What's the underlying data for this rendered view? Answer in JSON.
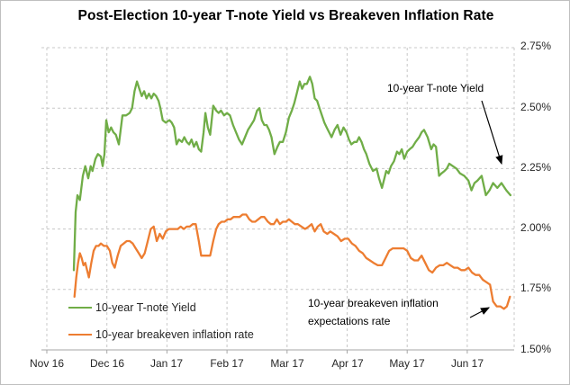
{
  "title": "Post-Election 10-year T-note Yield vs Breakeven Inflation Rate",
  "colors": {
    "tnote_green": "#70AD47",
    "breakeven_orange": "#ED7D31",
    "gridline": "#C8C8C8",
    "axis_line": "#A6A6A6",
    "text": "#262626",
    "annotation_arrow": "#000000"
  },
  "legend": {
    "position": "bottom-left-inside",
    "items": [
      {
        "label": "10-year T-note Yield",
        "color": "#70AD47"
      },
      {
        "label": "10-year breakeven inflation rate",
        "color": "#ED7D31"
      }
    ]
  },
  "annotations": {
    "tnote_label": "10-year T-note Yield",
    "breakeven_line1": "10-year breakeven inflation",
    "breakeven_line2": "expectations rate"
  },
  "chart_data": {
    "type": "line",
    "title": "Post-Election 10-year T-note Yield vs Breakeven Inflation Rate",
    "x_axis": {
      "labels": [
        "Nov 16",
        "Dec 16",
        "Jan 17",
        "Feb 17",
        "Mar 17",
        "Apr 17",
        "May 17",
        "Jun 17"
      ],
      "x_unit": "months after Nov 2016 tick (0 = Nov 16 tick, 7 = Jun 17 tick)",
      "range": [
        0,
        7.78
      ]
    },
    "y_axis": {
      "tick_labels": [
        "2.75%",
        "2.50%",
        "2.25%",
        "2.00%",
        "1.75%",
        "1.50%"
      ],
      "ticks": [
        2.75,
        2.5,
        2.25,
        2.0,
        1.75,
        1.5
      ],
      "min": 1.5,
      "max": 2.75,
      "unit": "%"
    },
    "grid": "dashed",
    "series": [
      {
        "name": "10-year T-note Yield",
        "color": "#70AD47",
        "points": [
          [
            0.45,
            1.83
          ],
          [
            0.48,
            2.07
          ],
          [
            0.51,
            2.14
          ],
          [
            0.55,
            2.12
          ],
          [
            0.6,
            2.22
          ],
          [
            0.64,
            2.26
          ],
          [
            0.69,
            2.21
          ],
          [
            0.73,
            2.26
          ],
          [
            0.76,
            2.24
          ],
          [
            0.81,
            2.29
          ],
          [
            0.85,
            2.31
          ],
          [
            0.9,
            2.3
          ],
          [
            0.93,
            2.26
          ],
          [
            0.96,
            2.31
          ],
          [
            0.99,
            2.45
          ],
          [
            1.03,
            2.4
          ],
          [
            1.07,
            2.42
          ],
          [
            1.11,
            2.4
          ],
          [
            1.15,
            2.39
          ],
          [
            1.2,
            2.35
          ],
          [
            1.26,
            2.47
          ],
          [
            1.32,
            2.47
          ],
          [
            1.38,
            2.48
          ],
          [
            1.42,
            2.5
          ],
          [
            1.46,
            2.57
          ],
          [
            1.5,
            2.61
          ],
          [
            1.54,
            2.58
          ],
          [
            1.58,
            2.55
          ],
          [
            1.62,
            2.57
          ],
          [
            1.66,
            2.54
          ],
          [
            1.7,
            2.56
          ],
          [
            1.74,
            2.54
          ],
          [
            1.78,
            2.56
          ],
          [
            1.82,
            2.55
          ],
          [
            1.86,
            2.53
          ],
          [
            1.89,
            2.5
          ],
          [
            1.93,
            2.45
          ],
          [
            1.98,
            2.44
          ],
          [
            2.04,
            2.45
          ],
          [
            2.08,
            2.44
          ],
          [
            2.12,
            2.42
          ],
          [
            2.16,
            2.35
          ],
          [
            2.2,
            2.37
          ],
          [
            2.25,
            2.36
          ],
          [
            2.29,
            2.38
          ],
          [
            2.33,
            2.36
          ],
          [
            2.37,
            2.35
          ],
          [
            2.41,
            2.37
          ],
          [
            2.45,
            2.34
          ],
          [
            2.49,
            2.36
          ],
          [
            2.53,
            2.33
          ],
          [
            2.57,
            2.32
          ],
          [
            2.61,
            2.4
          ],
          [
            2.64,
            2.48
          ],
          [
            2.68,
            2.42
          ],
          [
            2.72,
            2.39
          ],
          [
            2.77,
            2.51
          ],
          [
            2.82,
            2.49
          ],
          [
            2.86,
            2.48
          ],
          [
            2.9,
            2.49
          ],
          [
            2.95,
            2.47
          ],
          [
            3.0,
            2.48
          ],
          [
            3.05,
            2.47
          ],
          [
            3.1,
            2.43
          ],
          [
            3.15,
            2.4
          ],
          [
            3.2,
            2.37
          ],
          [
            3.25,
            2.35
          ],
          [
            3.3,
            2.38
          ],
          [
            3.35,
            2.41
          ],
          [
            3.4,
            2.43
          ],
          [
            3.45,
            2.45
          ],
          [
            3.5,
            2.49
          ],
          [
            3.54,
            2.5
          ],
          [
            3.58,
            2.45
          ],
          [
            3.62,
            2.43
          ],
          [
            3.66,
            2.43
          ],
          [
            3.7,
            2.41
          ],
          [
            3.74,
            2.38
          ],
          [
            3.79,
            2.31
          ],
          [
            3.84,
            2.34
          ],
          [
            3.88,
            2.36
          ],
          [
            3.93,
            2.36
          ],
          [
            3.98,
            2.4
          ],
          [
            4.03,
            2.46
          ],
          [
            4.08,
            2.49
          ],
          [
            4.12,
            2.52
          ],
          [
            4.16,
            2.56
          ],
          [
            4.21,
            2.61
          ],
          [
            4.25,
            2.58
          ],
          [
            4.29,
            2.6
          ],
          [
            4.33,
            2.6
          ],
          [
            4.38,
            2.63
          ],
          [
            4.42,
            2.6
          ],
          [
            4.46,
            2.54
          ],
          [
            4.5,
            2.53
          ],
          [
            4.54,
            2.5
          ],
          [
            4.58,
            2.47
          ],
          [
            4.62,
            2.44
          ],
          [
            4.66,
            2.42
          ],
          [
            4.7,
            2.4
          ],
          [
            4.74,
            2.38
          ],
          [
            4.79,
            2.41
          ],
          [
            4.84,
            2.43
          ],
          [
            4.89,
            2.39
          ],
          [
            4.94,
            2.42
          ],
          [
            4.99,
            2.4
          ],
          [
            5.03,
            2.37
          ],
          [
            5.07,
            2.35
          ],
          [
            5.12,
            2.36
          ],
          [
            5.16,
            2.36
          ],
          [
            5.2,
            2.38
          ],
          [
            5.24,
            2.36
          ],
          [
            5.28,
            2.33
          ],
          [
            5.32,
            2.31
          ],
          [
            5.37,
            2.27
          ],
          [
            5.43,
            2.24
          ],
          [
            5.49,
            2.25
          ],
          [
            5.53,
            2.21
          ],
          [
            5.58,
            2.17
          ],
          [
            5.62,
            2.21
          ],
          [
            5.65,
            2.24
          ],
          [
            5.69,
            2.23
          ],
          [
            5.73,
            2.26
          ],
          [
            5.78,
            2.28
          ],
          [
            5.83,
            2.32
          ],
          [
            5.87,
            2.31
          ],
          [
            5.91,
            2.33
          ],
          [
            5.95,
            2.29
          ],
          [
            6.0,
            2.32
          ],
          [
            6.04,
            2.33
          ],
          [
            6.09,
            2.34
          ],
          [
            6.14,
            2.36
          ],
          [
            6.2,
            2.38
          ],
          [
            6.24,
            2.4
          ],
          [
            6.28,
            2.41
          ],
          [
            6.34,
            2.38
          ],
          [
            6.4,
            2.33
          ],
          [
            6.44,
            2.35
          ],
          [
            6.48,
            2.34
          ],
          [
            6.53,
            2.22
          ],
          [
            6.57,
            2.23
          ],
          [
            6.62,
            2.24
          ],
          [
            6.66,
            2.25
          ],
          [
            6.7,
            2.27
          ],
          [
            6.76,
            2.26
          ],
          [
            6.82,
            2.25
          ],
          [
            6.88,
            2.23
          ],
          [
            6.95,
            2.22
          ],
          [
            7.02,
            2.2
          ],
          [
            7.07,
            2.16
          ],
          [
            7.12,
            2.19
          ],
          [
            7.17,
            2.2
          ],
          [
            7.24,
            2.22
          ],
          [
            7.31,
            2.14
          ],
          [
            7.37,
            2.16
          ],
          [
            7.43,
            2.19
          ],
          [
            7.5,
            2.17
          ],
          [
            7.57,
            2.19
          ],
          [
            7.65,
            2.16
          ],
          [
            7.72,
            2.14
          ]
        ]
      },
      {
        "name": "10-year breakeven inflation rate",
        "color": "#ED7D31",
        "points": [
          [
            0.46,
            1.72
          ],
          [
            0.49,
            1.8
          ],
          [
            0.52,
            1.86
          ],
          [
            0.55,
            1.9
          ],
          [
            0.58,
            1.88
          ],
          [
            0.61,
            1.85
          ],
          [
            0.64,
            1.86
          ],
          [
            0.67,
            1.83
          ],
          [
            0.7,
            1.8
          ],
          [
            0.74,
            1.86
          ],
          [
            0.78,
            1.91
          ],
          [
            0.82,
            1.93
          ],
          [
            0.86,
            1.93
          ],
          [
            0.9,
            1.94
          ],
          [
            0.95,
            1.93
          ],
          [
            1.0,
            1.93
          ],
          [
            1.05,
            1.91
          ],
          [
            1.09,
            1.86
          ],
          [
            1.13,
            1.84
          ],
          [
            1.18,
            1.89
          ],
          [
            1.23,
            1.93
          ],
          [
            1.28,
            1.94
          ],
          [
            1.33,
            1.95
          ],
          [
            1.38,
            1.95
          ],
          [
            1.43,
            1.94
          ],
          [
            1.48,
            1.92
          ],
          [
            1.53,
            1.9
          ],
          [
            1.58,
            1.88
          ],
          [
            1.63,
            1.9
          ],
          [
            1.68,
            1.95
          ],
          [
            1.73,
            2.0
          ],
          [
            1.78,
            2.01
          ],
          [
            1.83,
            1.95
          ],
          [
            1.88,
            1.98
          ],
          [
            1.93,
            1.96
          ],
          [
            1.98,
            1.99
          ],
          [
            2.03,
            2.0
          ],
          [
            2.08,
            2.0
          ],
          [
            2.13,
            2.0
          ],
          [
            2.18,
            2.0
          ],
          [
            2.23,
            2.01
          ],
          [
            2.28,
            2.0
          ],
          [
            2.33,
            2.01
          ],
          [
            2.38,
            2.01
          ],
          [
            2.43,
            2.02
          ],
          [
            2.48,
            2.02
          ],
          [
            2.53,
            1.95
          ],
          [
            2.57,
            1.89
          ],
          [
            2.62,
            1.89
          ],
          [
            2.67,
            1.89
          ],
          [
            2.72,
            1.89
          ],
          [
            2.77,
            1.95
          ],
          [
            2.82,
            2.0
          ],
          [
            2.86,
            2.02
          ],
          [
            2.91,
            2.03
          ],
          [
            2.96,
            2.03
          ],
          [
            3.01,
            2.04
          ],
          [
            3.06,
            2.04
          ],
          [
            3.11,
            2.05
          ],
          [
            3.16,
            2.05
          ],
          [
            3.21,
            2.05
          ],
          [
            3.26,
            2.06
          ],
          [
            3.32,
            2.06
          ],
          [
            3.37,
            2.04
          ],
          [
            3.42,
            2.03
          ],
          [
            3.47,
            2.03
          ],
          [
            3.52,
            2.04
          ],
          [
            3.57,
            2.05
          ],
          [
            3.62,
            2.05
          ],
          [
            3.68,
            2.03
          ],
          [
            3.73,
            2.02
          ],
          [
            3.78,
            2.02
          ],
          [
            3.83,
            2.04
          ],
          [
            3.88,
            2.02
          ],
          [
            3.93,
            2.03
          ],
          [
            3.98,
            2.03
          ],
          [
            4.03,
            2.04
          ],
          [
            4.08,
            2.03
          ],
          [
            4.13,
            2.02
          ],
          [
            4.18,
            2.02
          ],
          [
            4.24,
            2.01
          ],
          [
            4.3,
            2.0
          ],
          [
            4.36,
            2.01
          ],
          [
            4.41,
            2.02
          ],
          [
            4.46,
            1.99
          ],
          [
            4.51,
            2.01
          ],
          [
            4.56,
            2.02
          ],
          [
            4.61,
            1.99
          ],
          [
            4.67,
            1.98
          ],
          [
            4.72,
            1.99
          ],
          [
            4.78,
            1.98
          ],
          [
            4.84,
            1.97
          ],
          [
            4.9,
            1.95
          ],
          [
            4.96,
            1.96
          ],
          [
            5.02,
            1.96
          ],
          [
            5.08,
            1.94
          ],
          [
            5.14,
            1.93
          ],
          [
            5.2,
            1.91
          ],
          [
            5.26,
            1.9
          ],
          [
            5.32,
            1.88
          ],
          [
            5.38,
            1.87
          ],
          [
            5.44,
            1.86
          ],
          [
            5.51,
            1.85
          ],
          [
            5.58,
            1.85
          ],
          [
            5.64,
            1.88
          ],
          [
            5.7,
            1.91
          ],
          [
            5.76,
            1.92
          ],
          [
            5.82,
            1.92
          ],
          [
            5.88,
            1.92
          ],
          [
            5.94,
            1.92
          ],
          [
            6.0,
            1.91
          ],
          [
            6.06,
            1.88
          ],
          [
            6.12,
            1.87
          ],
          [
            6.18,
            1.87
          ],
          [
            6.24,
            1.89
          ],
          [
            6.3,
            1.86
          ],
          [
            6.36,
            1.83
          ],
          [
            6.42,
            1.82
          ],
          [
            6.48,
            1.84
          ],
          [
            6.54,
            1.85
          ],
          [
            6.6,
            1.85
          ],
          [
            6.66,
            1.86
          ],
          [
            6.72,
            1.85
          ],
          [
            6.78,
            1.84
          ],
          [
            6.84,
            1.84
          ],
          [
            6.9,
            1.83
          ],
          [
            6.96,
            1.83
          ],
          [
            7.02,
            1.84
          ],
          [
            7.08,
            1.82
          ],
          [
            7.14,
            1.81
          ],
          [
            7.2,
            1.81
          ],
          [
            7.26,
            1.79
          ],
          [
            7.32,
            1.78
          ],
          [
            7.38,
            1.77
          ],
          [
            7.43,
            1.7
          ],
          [
            7.49,
            1.68
          ],
          [
            7.55,
            1.68
          ],
          [
            7.61,
            1.67
          ],
          [
            7.66,
            1.68
          ],
          [
            7.71,
            1.72
          ]
        ]
      }
    ]
  }
}
